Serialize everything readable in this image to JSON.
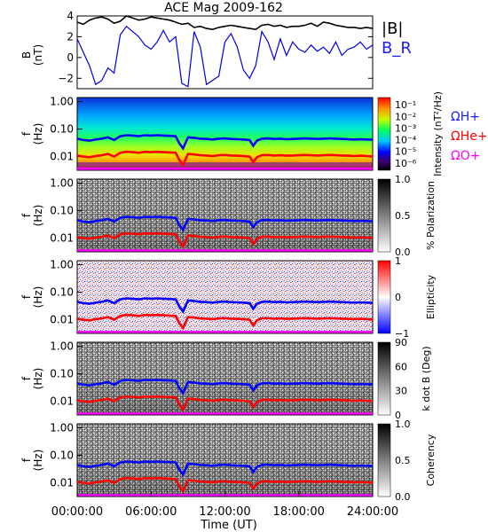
{
  "chart_data": [
    {
      "type": "line",
      "title": "ACE Mag 2009-162",
      "ylabel": "B\n(nT)",
      "ylim": [
        -3,
        4
      ],
      "yticks": [
        "4",
        "2",
        "0",
        "−2"
      ],
      "ytick_values": [
        4,
        2,
        0,
        -2
      ],
      "xlim_hours": [
        0,
        24
      ],
      "legend": [
        "|B|",
        "B_R"
      ],
      "series": [
        {
          "name": "|B|",
          "color": "#000000",
          "x_hours": [
            0,
            0.5,
            1,
            1.5,
            2,
            2.5,
            3,
            3.5,
            4,
            4.5,
            5,
            5.5,
            6,
            6.5,
            7,
            7.5,
            8,
            8.5,
            9,
            9.5,
            10,
            10.5,
            11,
            11.5,
            12,
            12.5,
            13,
            13.5,
            14,
            14.5,
            15,
            15.5,
            16,
            16.5,
            17,
            17.5,
            18,
            18.5,
            19,
            19.5,
            20,
            20.5,
            21,
            21.5,
            22,
            22.5,
            23,
            23.5,
            24
          ],
          "values": [
            3.4,
            3.2,
            3.6,
            3.8,
            3.9,
            3.7,
            3.3,
            3.5,
            4.0,
            3.8,
            3.6,
            3.7,
            3.9,
            3.8,
            3.7,
            3.6,
            3.4,
            3.2,
            3.3,
            2.9,
            3.0,
            2.8,
            2.7,
            2.9,
            3.0,
            3.1,
            3.0,
            2.9,
            2.8,
            2.7,
            3.1,
            3.2,
            3.0,
            3.1,
            2.9,
            3.0,
            3.0,
            3.1,
            3.3,
            3.0,
            3.4,
            3.3,
            3.1,
            3.0,
            2.9,
            2.9,
            2.8,
            2.9,
            2.8
          ]
        },
        {
          "name": "B_R",
          "color": "#0000e6",
          "x_hours": [
            0,
            0.5,
            1,
            1.5,
            2,
            2.5,
            3,
            3.5,
            4,
            4.5,
            5,
            5.5,
            6,
            6.5,
            7,
            7.5,
            8,
            8.5,
            9,
            9.5,
            10,
            10.5,
            11,
            11.5,
            12,
            12.5,
            13,
            13.5,
            14,
            14.5,
            15,
            15.5,
            16,
            16.5,
            17,
            17.5,
            18,
            18.5,
            19,
            19.5,
            20,
            20.5,
            21,
            21.5,
            22,
            22.5,
            23,
            23.5,
            24
          ],
          "values": [
            1.8,
            0.5,
            -0.8,
            -2.6,
            -2.2,
            -1.0,
            -1.5,
            2.2,
            3.0,
            2.5,
            2.0,
            1.2,
            0.8,
            1.5,
            2.6,
            1.5,
            2.0,
            -2.5,
            -2.8,
            2.5,
            1.0,
            -2.6,
            -2.2,
            -1.8,
            1.5,
            2.3,
            1.0,
            -1.2,
            -2.0,
            -0.8,
            2.5,
            1.5,
            -0.2,
            1.8,
            0.2,
            1.5,
            0.8,
            0.5,
            1.2,
            0.6,
            1.0,
            0.4,
            1.5,
            0.2,
            0.8,
            1.0,
            1.5,
            0.8,
            1.2
          ]
        }
      ]
    },
    {
      "type": "heatmap",
      "ylabel": "f\n(Hz)",
      "yticks": [
        "1.00",
        "0.10",
        "0.01"
      ],
      "colorbar": {
        "label": "Intensity (nT²/Hz)",
        "ticks": [
          "10⁻¹",
          "10⁻²",
          "10⁻³",
          "10⁻⁴",
          "10⁻⁵",
          "10⁻⁶"
        ],
        "colormap": "rainbow"
      },
      "legend": [
        "ΩH+",
        "ΩHe+",
        "ΩO+"
      ]
    },
    {
      "type": "heatmap",
      "ylabel": "f\n(Hz)",
      "yticks": [
        "1.00",
        "0.10",
        "0.01"
      ],
      "colorbar": {
        "label": "% Polarization",
        "ticks": [
          "1.0",
          "0.5",
          "0.0"
        ],
        "colormap": "gray"
      }
    },
    {
      "type": "heatmap",
      "ylabel": "f\n(Hz)",
      "yticks": [
        "1.00",
        "0.10",
        "0.01"
      ],
      "colorbar": {
        "label": "Ellipticity",
        "ticks": [
          "1",
          "0",
          "−1"
        ],
        "colormap": "blue-white-red"
      }
    },
    {
      "type": "heatmap",
      "ylabel": "f\n(Hz)",
      "yticks": [
        "1.00",
        "0.10",
        "0.01"
      ],
      "colorbar": {
        "label": "k dot B (Deg)",
        "ticks": [
          "90",
          "60",
          "30",
          "0"
        ],
        "colormap": "gray"
      }
    },
    {
      "type": "heatmap",
      "ylabel": "f\n(Hz)",
      "yticks": [
        "1.00",
        "0.10",
        "0.01"
      ],
      "colorbar": {
        "label": "Coherency",
        "ticks": [
          "1.0",
          "0.5",
          "0.0"
        ],
        "colormap": "gray"
      }
    }
  ],
  "gyrofrequency_lines": {
    "x_hours": [
      0,
      0.5,
      1,
      1.5,
      2,
      2.5,
      3,
      3.5,
      4,
      4.5,
      5,
      5.5,
      6,
      6.5,
      7,
      7.5,
      8,
      8.3,
      8.6,
      9,
      9.5,
      10,
      10.5,
      11,
      11.5,
      12,
      12.5,
      13,
      13.5,
      14,
      14.3,
      14.6,
      15,
      15.5,
      16,
      16.5,
      17,
      17.5,
      18,
      18.5,
      19,
      19.5,
      20,
      20.5,
      21,
      21.5,
      22,
      22.5,
      23,
      23.5,
      24
    ],
    "H_plus_hz": [
      0.045,
      0.04,
      0.038,
      0.042,
      0.045,
      0.05,
      0.04,
      0.055,
      0.06,
      0.058,
      0.055,
      0.06,
      0.058,
      0.06,
      0.058,
      0.057,
      0.055,
      0.03,
      0.02,
      0.05,
      0.048,
      0.045,
      0.044,
      0.042,
      0.045,
      0.046,
      0.044,
      0.043,
      0.042,
      0.04,
      0.025,
      0.038,
      0.045,
      0.046,
      0.044,
      0.045,
      0.043,
      0.044,
      0.045,
      0.046,
      0.045,
      0.044,
      0.045,
      0.046,
      0.045,
      0.044,
      0.043,
      0.042,
      0.043,
      0.042,
      0.041
    ],
    "He_plus_hz": [
      0.011,
      0.01,
      0.0095,
      0.0105,
      0.0112,
      0.0125,
      0.01,
      0.0138,
      0.015,
      0.0145,
      0.0138,
      0.015,
      0.0145,
      0.015,
      0.0145,
      0.0142,
      0.0138,
      0.0075,
      0.005,
      0.0125,
      0.012,
      0.0112,
      0.011,
      0.0105,
      0.0112,
      0.0115,
      0.011,
      0.0108,
      0.0105,
      0.01,
      0.0062,
      0.0095,
      0.0112,
      0.0115,
      0.011,
      0.0112,
      0.0108,
      0.011,
      0.0112,
      0.0115,
      0.0112,
      0.011,
      0.0112,
      0.0115,
      0.0112,
      0.011,
      0.0108,
      0.0105,
      0.0108,
      0.0105,
      0.0102
    ],
    "O_plus_hz": 0.0036,
    "colors": {
      "H_plus": "#0000ff",
      "He_plus": "#ff0000",
      "O_plus": "#ff00ff"
    }
  },
  "x_axis": {
    "label": "Time (UT)",
    "ticks": [
      "00:00:00",
      "06:00:00",
      "12:00:00",
      "18:00:00",
      "24:00:00"
    ],
    "tick_hours": [
      0,
      6,
      12,
      18,
      24
    ]
  }
}
